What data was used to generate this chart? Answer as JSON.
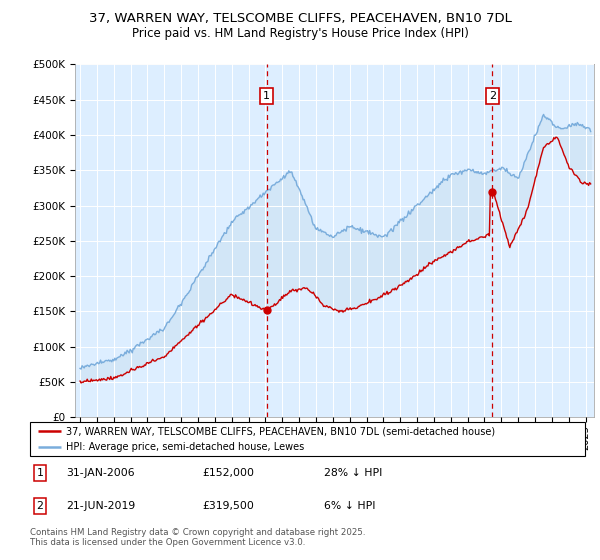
{
  "title_line1": "37, WARREN WAY, TELSCOMBE CLIFFS, PEACEHAVEN, BN10 7DL",
  "title_line2": "Price paid vs. HM Land Registry's House Price Index (HPI)",
  "ylabel_ticks": [
    "£0",
    "£50K",
    "£100K",
    "£150K",
    "£200K",
    "£250K",
    "£300K",
    "£350K",
    "£400K",
    "£450K",
    "£500K"
  ],
  "ytick_values": [
    0,
    50000,
    100000,
    150000,
    200000,
    250000,
    300000,
    350000,
    400000,
    450000,
    500000
  ],
  "xlim_start": 1994.7,
  "xlim_end": 2025.5,
  "ylim": [
    0,
    500000
  ],
  "hpi_color": "#7aaddc",
  "price_color": "#cc0000",
  "fill_color": "#d0e4f5",
  "background_color": "#ddeeff",
  "marker1_date": 2006.08,
  "marker1_price": 152000,
  "marker2_date": 2019.47,
  "marker2_price": 319500,
  "legend_property": "37, WARREN WAY, TELSCOMBE CLIFFS, PEACEHAVEN, BN10 7DL (semi-detached house)",
  "legend_hpi": "HPI: Average price, semi-detached house, Lewes",
  "footer": "Contains HM Land Registry data © Crown copyright and database right 2025.\nThis data is licensed under the Open Government Licence v3.0.",
  "xtick_years": [
    1995,
    1996,
    1997,
    1998,
    1999,
    2000,
    2001,
    2002,
    2003,
    2004,
    2005,
    2006,
    2007,
    2008,
    2009,
    2010,
    2011,
    2012,
    2013,
    2014,
    2015,
    2016,
    2017,
    2018,
    2019,
    2020,
    2021,
    2022,
    2023,
    2024,
    2025
  ]
}
